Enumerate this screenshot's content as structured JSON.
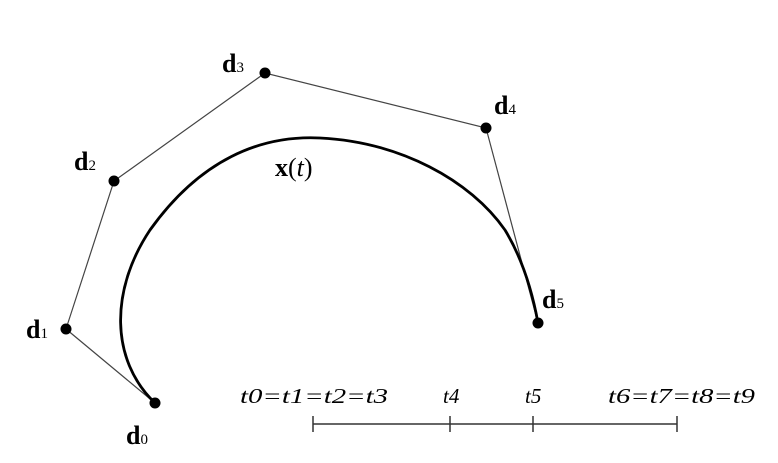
{
  "curve_label": {
    "main": "x",
    "arg": "t"
  },
  "control_points": [
    "d0",
    "d1",
    "d2",
    "d3",
    "d4",
    "d5"
  ],
  "knot_labels": [
    "t0=t1=t2=t3",
    "t4",
    "t5",
    "t6=t7=t8=t9"
  ],
  "colors": {
    "ink": "#000000",
    "polygon": "#444444"
  }
}
